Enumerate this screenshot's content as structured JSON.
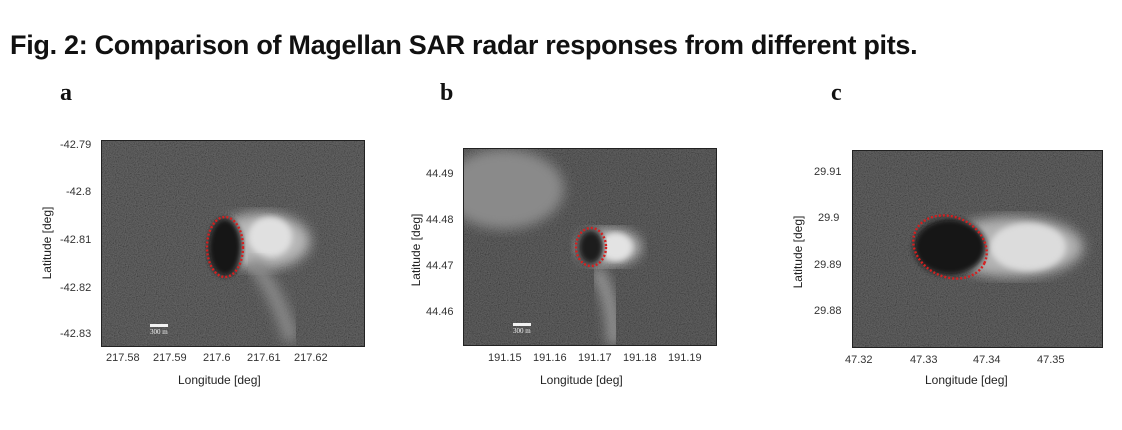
{
  "figure": {
    "title": "Fig. 2: Comparison of Magellan SAR radar responses from different pits."
  },
  "panels": [
    {
      "letter": "a",
      "xlabel": "Longitude [deg]",
      "ylabel": "Latitude [deg]",
      "xticks": [
        "217.58",
        "217.59",
        "217.6",
        "217.61",
        "217.62"
      ],
      "yticks": [
        "-42.79",
        "-42.8",
        "-42.81",
        "-42.82",
        "-42.83"
      ],
      "scale_label": "300 m"
    },
    {
      "letter": "b",
      "xlabel": "Longitude [deg]",
      "ylabel": "Latitude [deg]",
      "xticks": [
        "191.15",
        "191.16",
        "191.17",
        "191.18",
        "191.19"
      ],
      "yticks": [
        "44.49",
        "44.48",
        "44.47",
        "44.46"
      ],
      "scale_label": "300 m"
    },
    {
      "letter": "c",
      "xlabel": "Longitude [deg]",
      "ylabel": "Latitude [deg]",
      "xticks": [
        "47.32",
        "47.33",
        "47.34",
        "47.35"
      ],
      "yticks": [
        "29.91",
        "29.9",
        "29.89",
        "29.88"
      ]
    }
  ],
  "colors": {
    "pit_outline": "#d42020"
  }
}
